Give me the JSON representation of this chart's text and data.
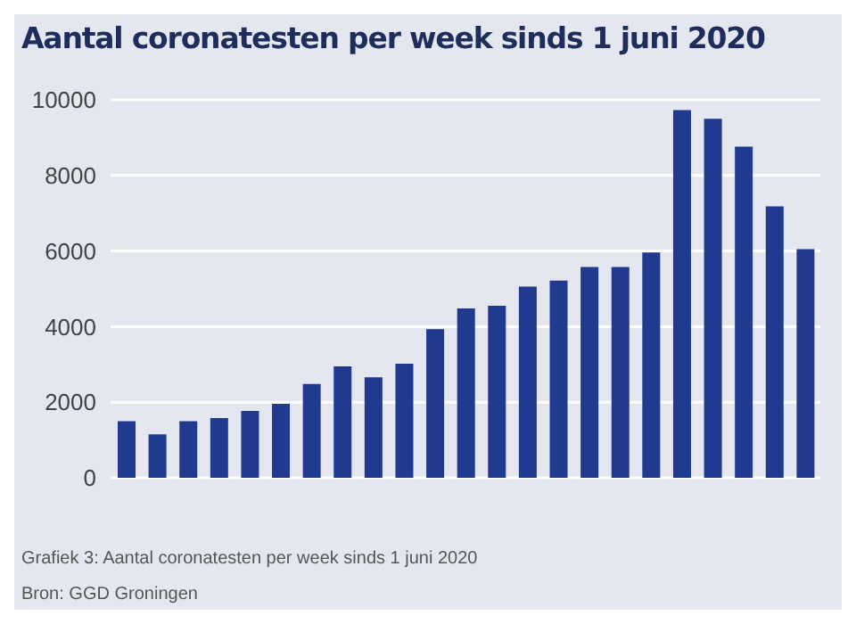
{
  "chart_data": {
    "type": "bar",
    "title": "Aantal coronatesten per week sinds 1 juni 2020",
    "categories": [
      null,
      null,
      null,
      null,
      null,
      null,
      null,
      null,
      null,
      null,
      null,
      null,
      null,
      null,
      null,
      null,
      null,
      null,
      null,
      null,
      null,
      null,
      null
    ],
    "values": [
      1500,
      1150,
      1500,
      1580,
      1770,
      1960,
      2480,
      2950,
      2660,
      3020,
      3930,
      4480,
      4550,
      5060,
      5220,
      5580,
      5580,
      5960,
      9730,
      9500,
      8760,
      7180,
      6050
    ],
    "color": "#1f3a8f",
    "ylim": [
      0,
      10000
    ],
    "yticks": [
      0,
      2000,
      4000,
      6000,
      8000,
      10000
    ],
    "grid": "y",
    "annotations": [
      "Grafiek 3: Aantal coronatesten per week sinds 1 juni 2020",
      "Bron: GGD Groningen"
    ]
  }
}
